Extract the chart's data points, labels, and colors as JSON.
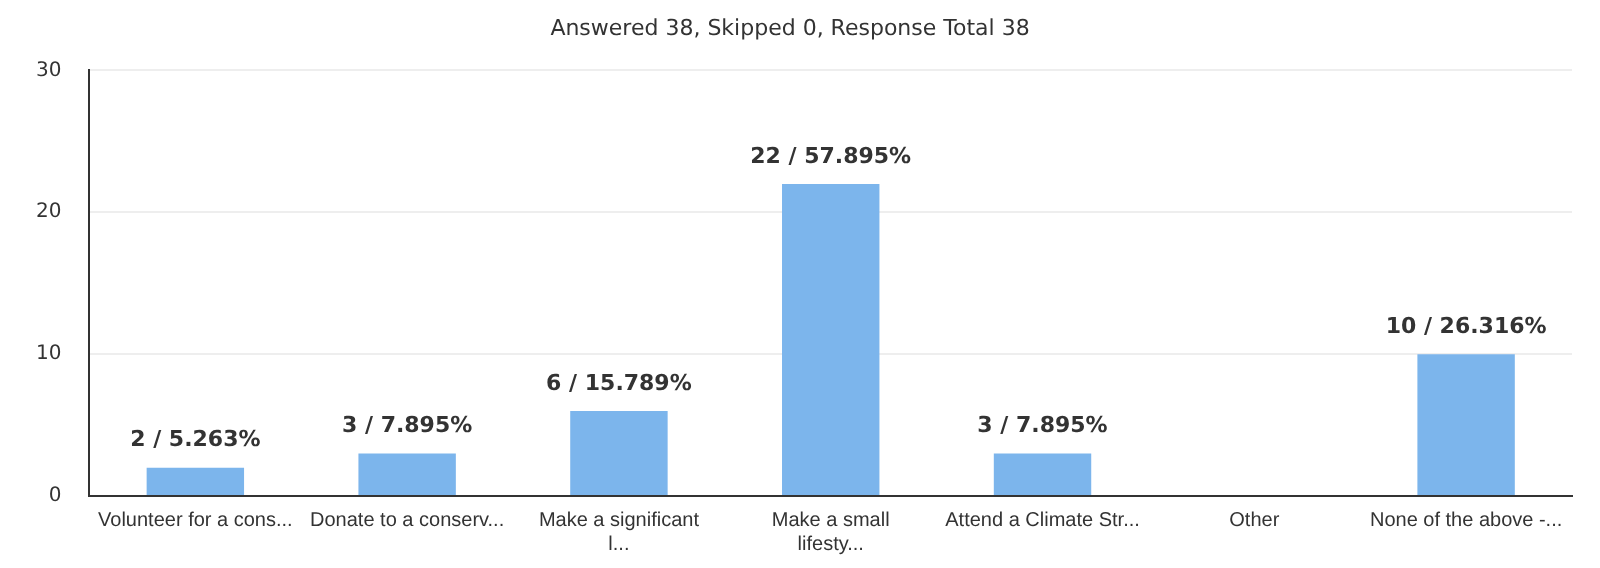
{
  "chart_data": {
    "type": "bar",
    "title": "Answered 38, Skipped 0, Response Total 38",
    "categories": [
      "Volunteer for a cons...",
      "Donate to a conserv...",
      "Make a significant\nl...",
      "Make a small\nlifesty...",
      "Attend a Climate Str...",
      "Other",
      "None of the above -..."
    ],
    "values": [
      2,
      3,
      6,
      22,
      3,
      0,
      10
    ],
    "value_labels": [
      "2 / 5.263%",
      "3 / 7.895%",
      "6 / 15.789%",
      "22 / 57.895%",
      "3 / 7.895%",
      null,
      "10 / 26.316%"
    ],
    "color": "#7cb5ec",
    "ylim": [
      0,
      30
    ],
    "yticks": [
      0,
      10,
      20,
      30
    ],
    "grid": "y",
    "legend": false
  }
}
